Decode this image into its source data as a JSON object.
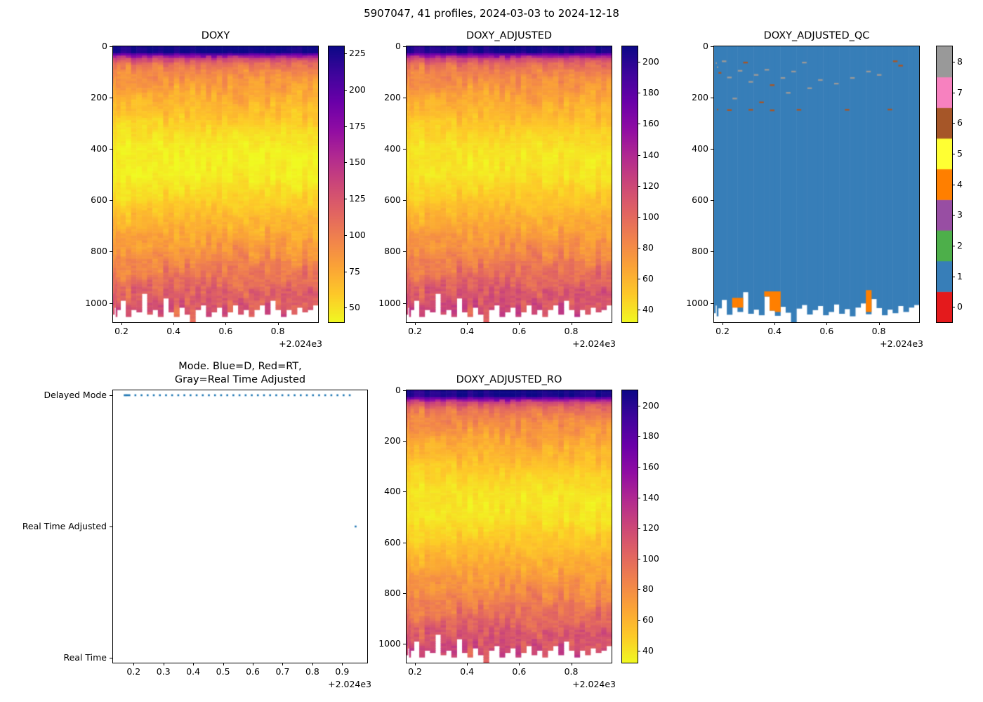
{
  "figure": {
    "title": "5907047, 41 profiles, 2024-03-03 to 2024-12-18",
    "platform_id": "5907047",
    "n_profiles": 41,
    "date_range": "2024-03-03 to 2024-12-18"
  },
  "profiles": {
    "times": [
      0.17,
      0.175,
      0.18,
      0.186,
      0.206,
      0.2266,
      0.2471,
      0.2677,
      0.2882,
      0.3088,
      0.3293,
      0.3499,
      0.3704,
      0.391,
      0.4115,
      0.4321,
      0.4526,
      0.4732,
      0.4937,
      0.5143,
      0.5348,
      0.5554,
      0.5759,
      0.5965,
      0.617,
      0.6376,
      0.6581,
      0.6787,
      0.6992,
      0.7198,
      0.7403,
      0.7609,
      0.7814,
      0.802,
      0.8225,
      0.8431,
      0.8636,
      0.8842,
      0.9047,
      0.9253,
      0.945
    ],
    "time_offset": "+2.024e3",
    "modes": [
      "D",
      "D",
      "D",
      "D",
      "D",
      "D",
      "D",
      "D",
      "D",
      "D",
      "D",
      "D",
      "D",
      "D",
      "D",
      "D",
      "D",
      "D",
      "D",
      "D",
      "D",
      "D",
      "D",
      "D",
      "D",
      "D",
      "D",
      "D",
      "D",
      "D",
      "D",
      "D",
      "D",
      "D",
      "D",
      "D",
      "D",
      "D",
      "D",
      "D",
      "RTA"
    ],
    "bottom_depths": [
      1040,
      1010,
      1052,
      1021,
      988,
      1046,
      1018,
      1035,
      958,
      1042,
      1026,
      1048,
      975,
      1030,
      1050,
      1015,
      1038,
      1075,
      1022,
      1008,
      1045,
      1028,
      1012,
      1048,
      1035,
      1006,
      1042,
      1024,
      1052,
      1018,
      1002,
      1044,
      985,
      1020,
      1048,
      1026,
      1040,
      1012,
      1035,
      1018,
      1008
    ]
  },
  "chart_data": [
    {
      "id": "doxy",
      "type": "heatmap",
      "title": "DOXY",
      "x_ticks": [
        0.2,
        0.4,
        0.6,
        0.8
      ],
      "x_range": [
        0.1675,
        0.955
      ],
      "x_offset_label": "+2.024e3",
      "y_ticks": [
        0,
        200,
        400,
        600,
        800,
        1000
      ],
      "y_range": [
        0,
        1075
      ],
      "colormap": "plasma_r",
      "vmin": 40,
      "vmax": 230,
      "colorbar_ticks": [
        225,
        200,
        175,
        150,
        125,
        100,
        75,
        50
      ],
      "depth_value_curve": [
        [
          0,
          233
        ],
        [
          25,
          228
        ],
        [
          35,
          180
        ],
        [
          50,
          130
        ],
        [
          70,
          105
        ],
        [
          100,
          92
        ],
        [
          150,
          82
        ],
        [
          200,
          74
        ],
        [
          250,
          66
        ],
        [
          300,
          57
        ],
        [
          350,
          48
        ],
        [
          400,
          44
        ],
        [
          450,
          43
        ],
        [
          500,
          45
        ],
        [
          550,
          50
        ],
        [
          600,
          56
        ],
        [
          650,
          63
        ],
        [
          700,
          71
        ],
        [
          750,
          79
        ],
        [
          800,
          88
        ],
        [
          850,
          97
        ],
        [
          900,
          105
        ],
        [
          950,
          113
        ],
        [
          1000,
          120
        ],
        [
          1075,
          127
        ]
      ]
    },
    {
      "id": "adjusted",
      "type": "heatmap",
      "title": "DOXY_ADJUSTED",
      "x_ticks": [
        0.2,
        0.4,
        0.6,
        0.8
      ],
      "x_range": [
        0.1675,
        0.955
      ],
      "x_offset_label": "+2.024e3",
      "y_ticks": [
        0,
        200,
        400,
        600,
        800,
        1000
      ],
      "y_range": [
        0,
        1075
      ],
      "colormap": "plasma_r",
      "vmin": 32,
      "vmax": 210,
      "colorbar_ticks": [
        200,
        180,
        160,
        140,
        120,
        100,
        80,
        60,
        40
      ],
      "depth_value_curve": [
        [
          0,
          208
        ],
        [
          25,
          203
        ],
        [
          35,
          160
        ],
        [
          50,
          116
        ],
        [
          70,
          96
        ],
        [
          100,
          85
        ],
        [
          150,
          76
        ],
        [
          200,
          68
        ],
        [
          250,
          60
        ],
        [
          300,
          52
        ],
        [
          350,
          44
        ],
        [
          400,
          40
        ],
        [
          450,
          39
        ],
        [
          500,
          41
        ],
        [
          550,
          46
        ],
        [
          600,
          52
        ],
        [
          650,
          58
        ],
        [
          700,
          66
        ],
        [
          750,
          74
        ],
        [
          800,
          82
        ],
        [
          850,
          90
        ],
        [
          900,
          98
        ],
        [
          950,
          106
        ],
        [
          1000,
          113
        ],
        [
          1075,
          120
        ]
      ]
    },
    {
      "id": "qc",
      "type": "heatmap",
      "title": "DOXY_ADJUSTED_QC",
      "x_ticks": [
        0.2,
        0.4,
        0.6,
        0.8
      ],
      "x_range": [
        0.1675,
        0.955
      ],
      "x_offset_label": "+2.024e3",
      "y_ticks": [
        0,
        200,
        400,
        600,
        800,
        1000
      ],
      "y_range": [
        0,
        1075
      ],
      "colorbar_ticks": [
        0,
        1,
        2,
        3,
        4,
        5,
        6,
        7,
        8
      ],
      "qc_colors": [
        "#e41a1c",
        "#377eb8",
        "#4daf4a",
        "#984ea3",
        "#ff7f00",
        "#ffff33",
        "#a65628",
        "#f781bf",
        "#999999"
      ],
      "base_qc": 1,
      "overlays": [
        {
          "qc": 4,
          "col_start": 6,
          "col_end": 7,
          "depth_start": 980,
          "depth_end": 1018
        },
        {
          "qc": 4,
          "col_start": 12,
          "col_end": 14,
          "depth_start": 955,
          "depth_end": 1035
        },
        {
          "qc": 4,
          "col_start": 31,
          "col_end": 31,
          "depth_start": 950,
          "depth_end": 1035
        }
      ],
      "marks": [
        [
          1,
          62,
          8
        ],
        [
          2,
          78,
          8
        ],
        [
          4,
          55,
          8
        ],
        [
          3,
          100,
          6
        ],
        [
          5,
          118,
          8
        ],
        [
          7,
          92,
          8
        ],
        [
          8,
          60,
          6
        ],
        [
          9,
          135,
          8
        ],
        [
          10,
          108,
          8
        ],
        [
          12,
          88,
          8
        ],
        [
          13,
          148,
          6
        ],
        [
          15,
          120,
          8
        ],
        [
          17,
          95,
          8
        ],
        [
          6,
          200,
          8
        ],
        [
          11,
          215,
          6
        ],
        [
          20,
          160,
          8
        ],
        [
          22,
          128,
          8
        ],
        [
          25,
          142,
          8
        ],
        [
          2,
          243,
          6
        ],
        [
          5,
          245,
          6
        ],
        [
          9,
          244,
          6
        ],
        [
          13,
          246,
          6
        ],
        [
          18,
          244,
          6
        ],
        [
          27,
          244,
          6
        ],
        [
          35,
          243,
          6
        ],
        [
          28,
          120,
          8
        ],
        [
          31,
          95,
          8
        ],
        [
          36,
          55,
          6
        ],
        [
          37,
          72,
          6
        ],
        [
          33,
          108,
          8
        ],
        [
          16,
          178,
          8
        ],
        [
          19,
          60,
          8
        ]
      ]
    },
    {
      "id": "mode",
      "type": "scatter",
      "title": "Mode. Blue=D, Red=RT,\nGray=Real Time Adjusted",
      "x_ticks": [
        0.2,
        0.3,
        0.4,
        0.5,
        0.6,
        0.7,
        0.8,
        0.9
      ],
      "x_range": [
        0.131,
        0.984
      ],
      "x_offset_label": "+2.024e3",
      "categories": [
        "Delayed Mode",
        "Real Time Adjusted",
        "Real Time"
      ],
      "marker_color": "#1f77b4",
      "legend_colors": {
        "D": "blue",
        "RT": "red",
        "RTA": "gray"
      }
    },
    {
      "id": "ro",
      "type": "heatmap",
      "title": "DOXY_ADJUSTED_RO",
      "x_ticks": [
        0.2,
        0.4,
        0.6,
        0.8
      ],
      "x_range": [
        0.1675,
        0.955
      ],
      "x_offset_label": "+2.024e3",
      "y_ticks": [
        0,
        200,
        400,
        600,
        800,
        1000
      ],
      "y_range": [
        0,
        1075
      ],
      "colormap": "plasma_r",
      "vmin": 32,
      "vmax": 210,
      "colorbar_ticks": [
        200,
        180,
        160,
        140,
        120,
        100,
        80,
        60,
        40
      ],
      "depth_value_curve": [
        [
          0,
          208
        ],
        [
          25,
          203
        ],
        [
          35,
          160
        ],
        [
          50,
          116
        ],
        [
          70,
          96
        ],
        [
          100,
          85
        ],
        [
          150,
          76
        ],
        [
          200,
          68
        ],
        [
          250,
          60
        ],
        [
          300,
          52
        ],
        [
          350,
          44
        ],
        [
          400,
          40
        ],
        [
          450,
          39
        ],
        [
          500,
          41
        ],
        [
          550,
          46
        ],
        [
          600,
          52
        ],
        [
          650,
          58
        ],
        [
          700,
          66
        ],
        [
          750,
          74
        ],
        [
          800,
          82
        ],
        [
          850,
          90
        ],
        [
          900,
          98
        ],
        [
          950,
          106
        ],
        [
          1000,
          113
        ],
        [
          1075,
          120
        ]
      ]
    }
  ]
}
